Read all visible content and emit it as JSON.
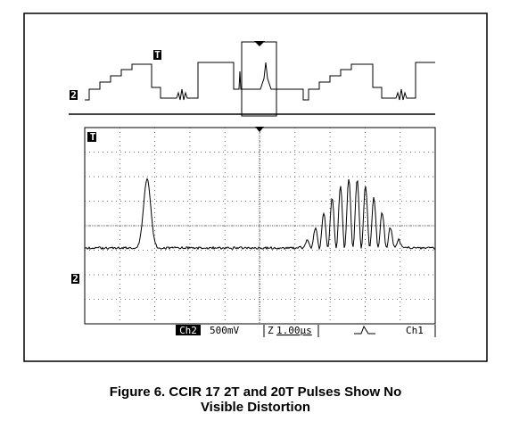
{
  "screen": {
    "trigger_marker_top": "T",
    "channel_marker_top": "2",
    "trigger_marker_main": "T",
    "channel_marker_main": "2",
    "status": {
      "channel": "Ch2",
      "scale": "500mV",
      "zoom": "Z",
      "timebase": "1.00µs",
      "trigger_source": "Ch1"
    }
  },
  "caption_lines": [
    "Figure 6. CCIR 17 2T and 20T Pulses Show No",
    "Visible Distortion"
  ]
}
